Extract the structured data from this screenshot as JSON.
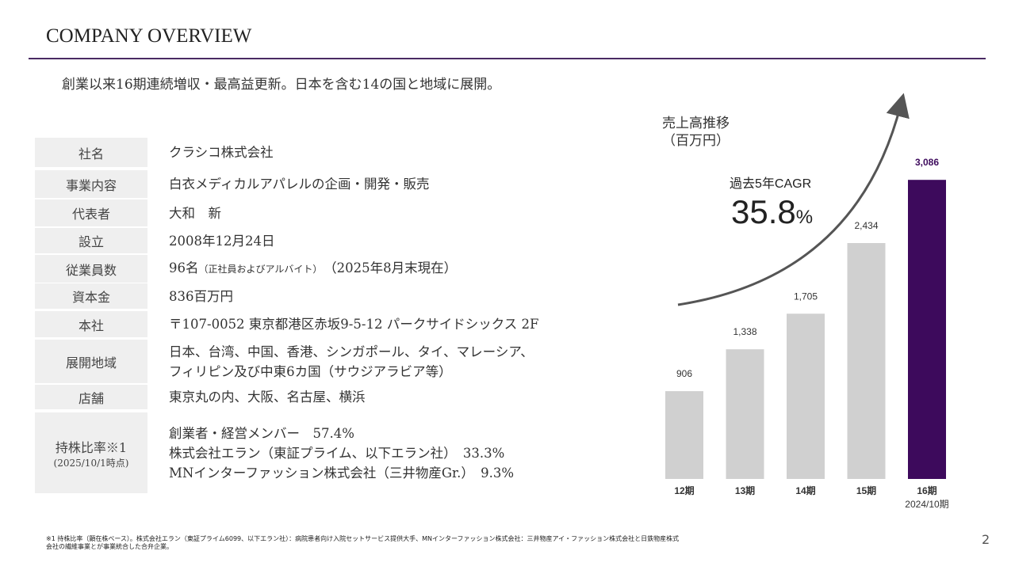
{
  "header": {
    "title": "COMPANY OVERVIEW",
    "subtitle": "創業以来16期連続増収・最高益更新。日本を含む14の国と地域に展開。"
  },
  "table": {
    "rows": [
      {
        "label": "社名",
        "lines": [
          "クラシコ株式会社"
        ]
      },
      {
        "label": "事業内容",
        "lines": [
          "白衣メディカルアパレルの企画・開発・販売"
        ]
      },
      {
        "label": "代表者",
        "lines": [
          "大和　新"
        ]
      },
      {
        "label": "設立",
        "lines": [
          "2008年12月24日"
        ]
      },
      {
        "label": "従業員数",
        "lines": [
          "96名"
        ],
        "note": "（正社員およびアルバイト）",
        "suffix": "（2025年8月末現在）"
      },
      {
        "label": "資本金",
        "lines": [
          "836百万円"
        ]
      },
      {
        "label": "本社",
        "lines": [
          "〒107-0052 東京都港区赤坂9-5-12 パークサイドシックス 2F"
        ]
      },
      {
        "label": "展開地域",
        "lines": [
          "日本、台湾、中国、香港、シンガポール、タイ、マレーシア、",
          "フィリピン及び中東6カ国（サウジアラビア等）"
        ]
      },
      {
        "label": "店舗",
        "lines": [
          "東京丸の内、大阪、名古屋、横浜"
        ]
      },
      {
        "label": "持株比率※1",
        "sublabel": "(2025/10/1時点)",
        "lines": [
          "創業者・経営メンバー　57.4%",
          "株式会社エラン（東証プライム、以下エラン社）　33.3%",
          "MNインターファッション株式会社（三井物産Gr.）　9.3%"
        ]
      }
    ]
  },
  "chart_data": {
    "type": "bar",
    "title": "売上高推移",
    "subtitle": "（百万円）",
    "categories": [
      "12期",
      "13期",
      "14期",
      "15期",
      "16期"
    ],
    "last_category_note": "2024/10期",
    "values": [
      906,
      1338,
      1705,
      2434,
      3086
    ],
    "value_labels": [
      "906",
      "1,338",
      "1,705",
      "2,434",
      "3,086"
    ],
    "colors": [
      "#d0d0d0",
      "#d0d0d0",
      "#d0d0d0",
      "#d0d0d0",
      "#3d0a5c"
    ],
    "ylim": [
      0,
      3300
    ],
    "annotation": {
      "label": "過去5年CAGR",
      "value": "35.8",
      "unit": "%"
    }
  },
  "footer": {
    "footnote": [
      "※1 持株比率（顕在株ベース）。株式会社エラン（東証プライム6099、以下エラン社）：病院患者向け入院セットサービス提供大手、MNインターファッション株式会社：三井物産アイ・ファッション株式会社と日鉄物産株式",
      "会社の繊維事業とが事業統合した合弁企業。"
    ],
    "page": "2"
  }
}
